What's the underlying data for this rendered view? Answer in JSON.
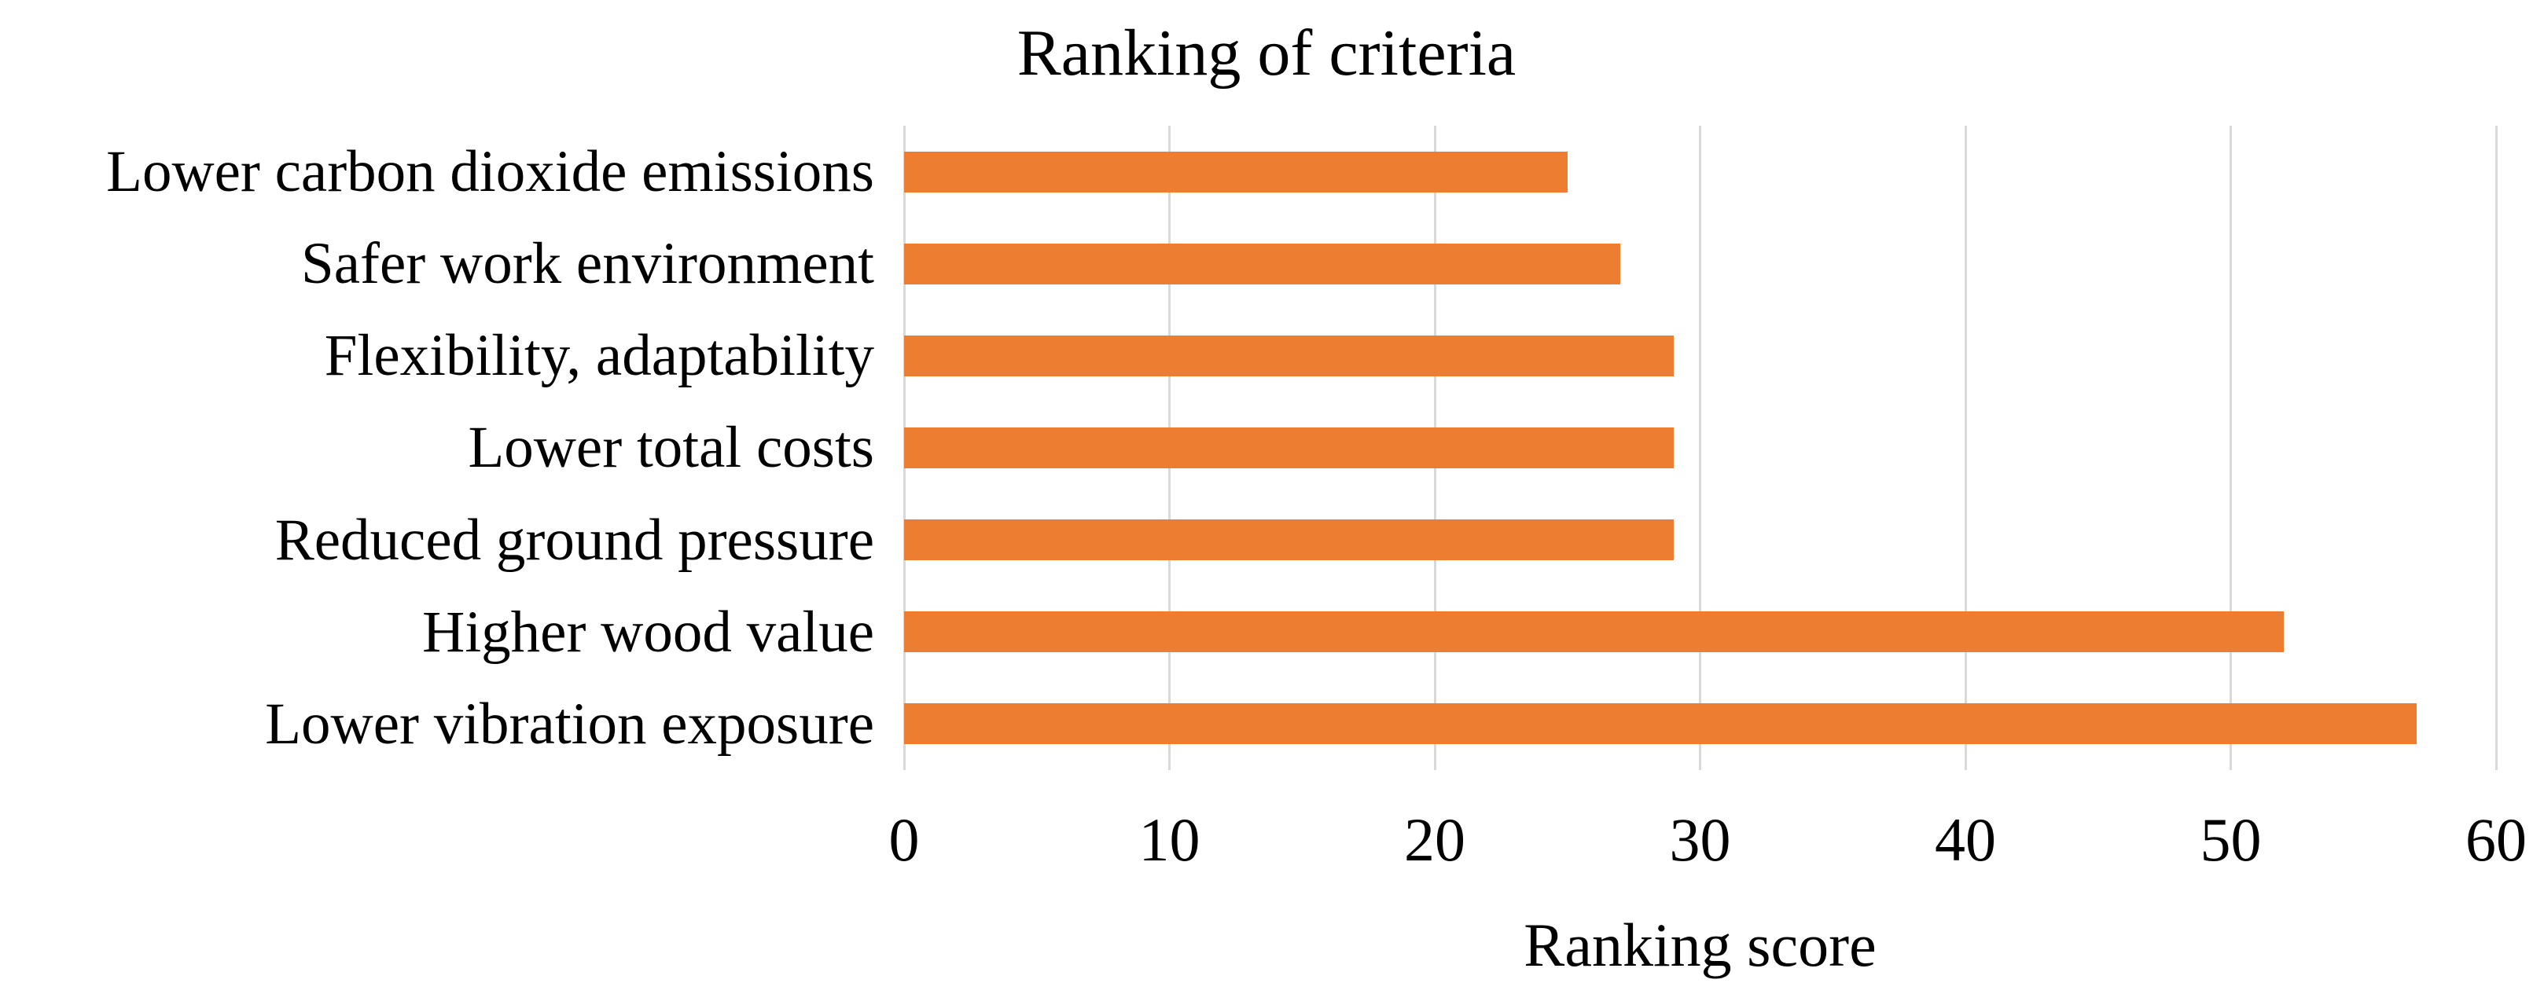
{
  "chart_data": {
    "type": "bar",
    "orientation": "horizontal",
    "title": "Ranking of criteria",
    "xlabel": "Ranking score",
    "ylabel": "",
    "categories": [
      "Lower carbon dioxide emissions",
      "Safer work environment",
      "Flexibility, adaptability",
      "Lower total costs",
      "Reduced ground pressure",
      "Higher wood value",
      "Lower vibration exposure"
    ],
    "values": [
      25,
      27,
      29,
      29,
      29,
      52,
      57
    ],
    "xlim": [
      0,
      60
    ],
    "xticks": [
      0,
      10,
      20,
      30,
      40,
      50,
      60
    ],
    "grid": "vertical-gridlines-on",
    "legend": "none",
    "bar_color": "#ED7D31",
    "gridline_color": "#D9D9D9",
    "text_color": "#000000",
    "background_color": "#FFFFFF"
  }
}
